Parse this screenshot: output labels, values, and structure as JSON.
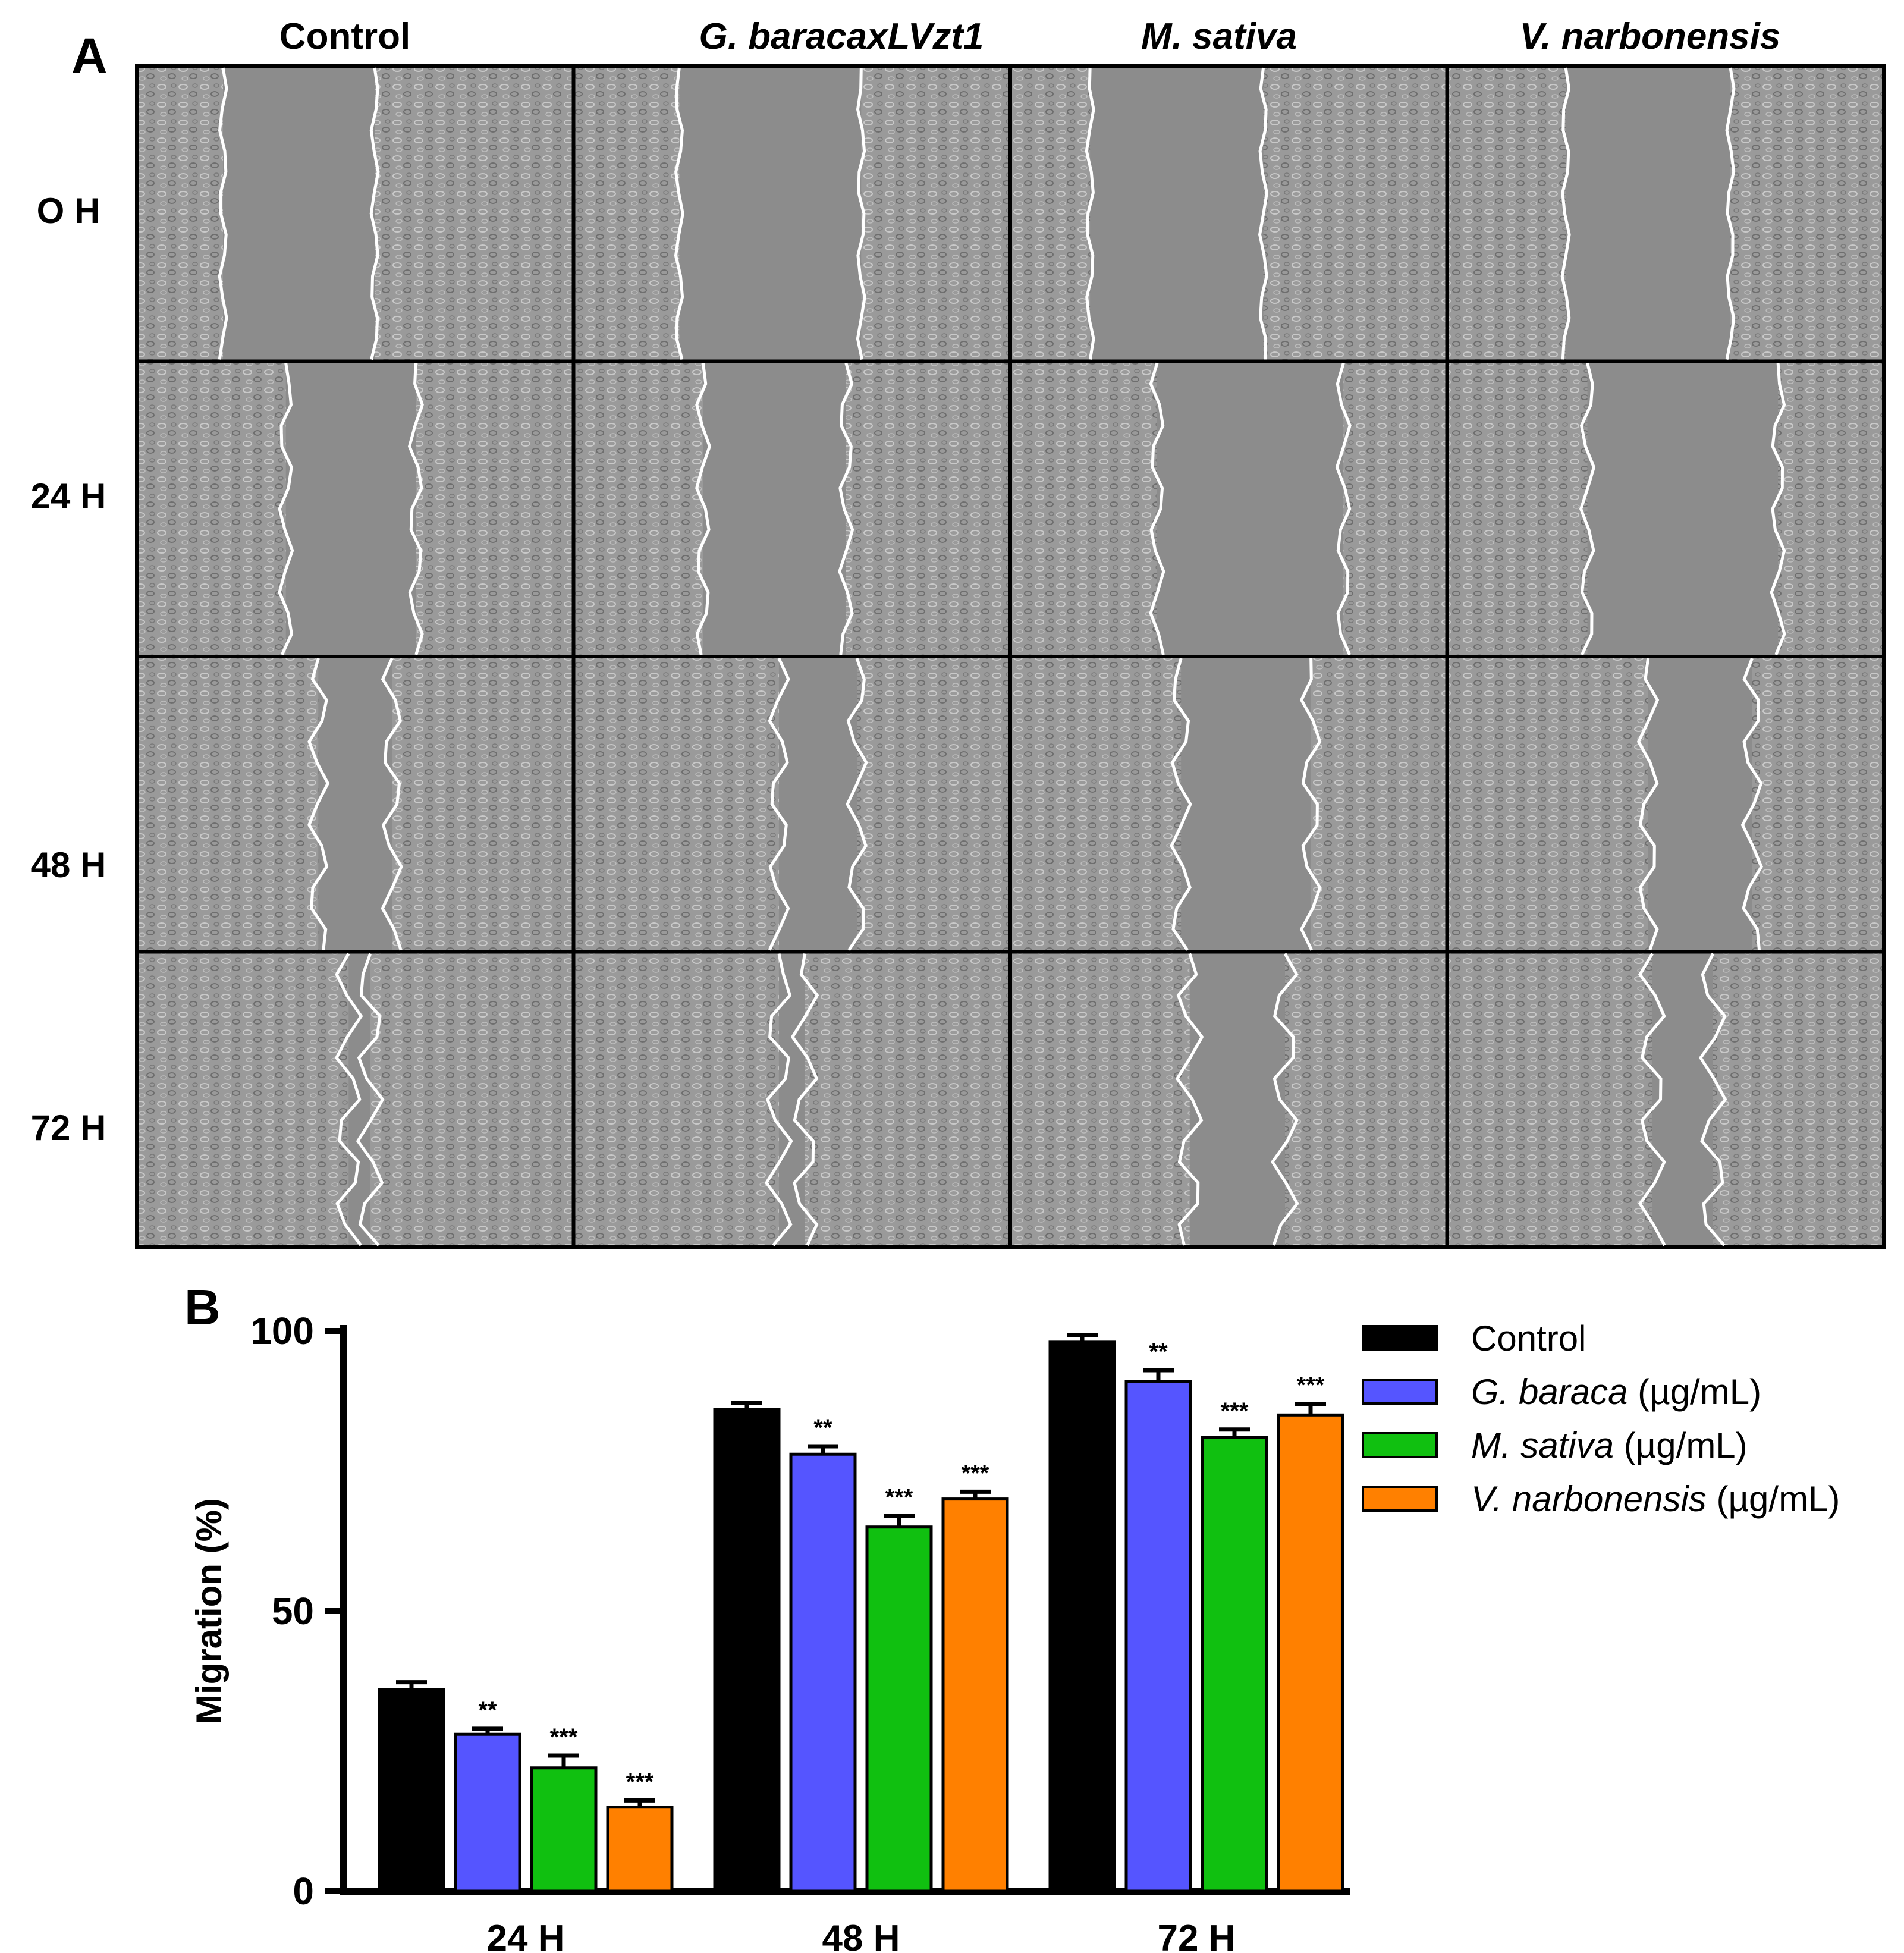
{
  "panel_a": {
    "letter": "A",
    "columns": [
      {
        "label": "Control",
        "italic": false
      },
      {
        "label": "G. baracaxLVzt1",
        "italic": true
      },
      {
        "label": "M. sativa",
        "italic": true
      },
      {
        "label": "V. narbonensis",
        "italic": true
      }
    ],
    "rows": [
      "O H",
      "24 H",
      "48 H",
      "72 H"
    ]
  },
  "panel_b": {
    "letter": "B"
  },
  "legend": [
    {
      "name": "Control",
      "unit": ""
    },
    {
      "name": "G. baraca",
      "unit": " (µg/mL)"
    },
    {
      "name": "M. sativa",
      "unit": " (µg/mL)"
    },
    {
      "name": "V. narbonensis",
      "unit": " (µg/mL)"
    }
  ],
  "chart_data": {
    "type": "bar",
    "categories": [
      "24 H",
      "48 H",
      "72 H"
    ],
    "ylabel": "Migration (%)",
    "xlabel": "",
    "ylim": [
      0,
      100
    ],
    "yticks": [
      0,
      50,
      100
    ],
    "grid": false,
    "legend_position": "right",
    "series": [
      {
        "name": "Control",
        "color": "#000000",
        "values": [
          36,
          86,
          98
        ],
        "errors": [
          1.3,
          1.2,
          1.2
        ],
        "sig": [
          "",
          "",
          ""
        ]
      },
      {
        "name": "G. baraca (µg/mL)",
        "color": "#5555FF",
        "values": [
          28,
          78,
          91
        ],
        "errors": [
          1.0,
          1.4,
          2.0
        ],
        "sig": [
          "**",
          "**",
          "**"
        ]
      },
      {
        "name": "M. sativa (µg/mL)",
        "color": "#10C010",
        "values": [
          22,
          65,
          81
        ],
        "errors": [
          2.2,
          2.0,
          1.4
        ],
        "sig": [
          "***",
          "***",
          "***"
        ]
      },
      {
        "name": "V. narbonensis (µg/mL)",
        "color": "#FF8000",
        "values": [
          15,
          70,
          85
        ],
        "errors": [
          1.2,
          1.3,
          2.0
        ],
        "sig": [
          "***",
          "***",
          "***"
        ]
      }
    ]
  }
}
